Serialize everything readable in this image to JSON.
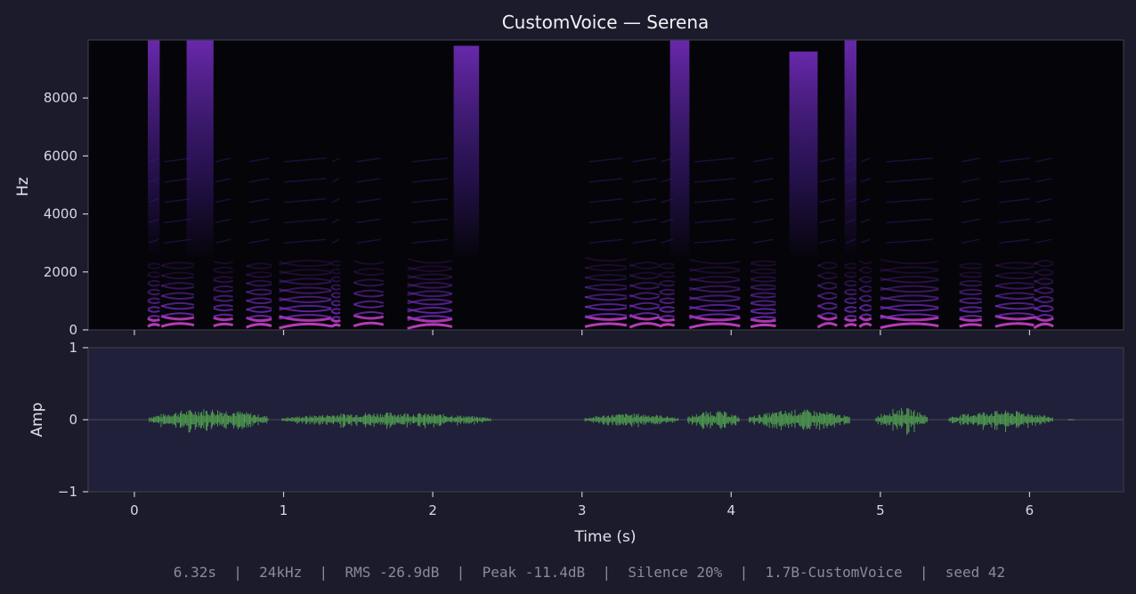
{
  "chart_data": [
    {
      "type": "heatmap",
      "title": "CustomVoice — Serena",
      "ylabel": "Hz",
      "ylim": [
        0,
        10000
      ],
      "yticks": [
        0,
        2000,
        4000,
        6000,
        8000
      ],
      "ytick_labels": [
        "0",
        "2000",
        "4000",
        "6000",
        "8000"
      ],
      "xlim": [
        -0.31,
        6.63
      ],
      "colormap": [
        "#050408",
        "#3a1a7a",
        "#7a2fc8",
        "#c640c8"
      ],
      "voiced_segments": [
        {
          "start": 0.09,
          "end": 0.17,
          "f0": 120,
          "hf_top": 10000
        },
        {
          "start": 0.18,
          "end": 0.4,
          "f0": 140,
          "hf_top": 0
        },
        {
          "start": 0.35,
          "end": 0.53,
          "f0": 0,
          "hf_top": 10000
        },
        {
          "start": 0.53,
          "end": 0.66,
          "f0": 130,
          "hf_top": 0
        },
        {
          "start": 0.75,
          "end": 0.92,
          "f0": 120,
          "hf_top": 0
        },
        {
          "start": 0.97,
          "end": 1.32,
          "f0": 125,
          "hf_top": 0
        },
        {
          "start": 1.32,
          "end": 1.38,
          "f0": 110,
          "hf_top": 0
        },
        {
          "start": 1.47,
          "end": 1.67,
          "f0": 150,
          "hf_top": 0
        },
        {
          "start": 1.83,
          "end": 2.13,
          "f0": 115,
          "hf_top": 0
        },
        {
          "start": 2.14,
          "end": 2.31,
          "f0": 0,
          "hf_top": 9800
        },
        {
          "start": 3.02,
          "end": 3.3,
          "f0": 135,
          "hf_top": 0
        },
        {
          "start": 3.32,
          "end": 3.52,
          "f0": 140,
          "hf_top": 0
        },
        {
          "start": 3.52,
          "end": 3.62,
          "f0": 120,
          "hf_top": 0
        },
        {
          "start": 3.59,
          "end": 3.72,
          "f0": 0,
          "hf_top": 10000
        },
        {
          "start": 3.72,
          "end": 4.06,
          "f0": 130,
          "hf_top": 0
        },
        {
          "start": 4.13,
          "end": 4.3,
          "f0": 110,
          "hf_top": 0
        },
        {
          "start": 4.39,
          "end": 4.58,
          "f0": 0,
          "hf_top": 9600
        },
        {
          "start": 4.58,
          "end": 4.71,
          "f0": 140,
          "hf_top": 0
        },
        {
          "start": 4.76,
          "end": 4.84,
          "f0": 120,
          "hf_top": 10000
        },
        {
          "start": 4.86,
          "end": 4.94,
          "f0": 130,
          "hf_top": 0
        },
        {
          "start": 5.0,
          "end": 5.39,
          "f0": 130,
          "hf_top": 0
        },
        {
          "start": 5.53,
          "end": 5.68,
          "f0": 120,
          "hf_top": 0
        },
        {
          "start": 5.77,
          "end": 6.03,
          "f0": 140,
          "hf_top": 0
        },
        {
          "start": 6.03,
          "end": 6.16,
          "f0": 125,
          "hf_top": 0
        }
      ]
    },
    {
      "type": "line",
      "ylabel": "Amp",
      "xlabel": "Time (s)",
      "xlim": [
        -0.31,
        6.63
      ],
      "ylim": [
        -1,
        1
      ],
      "xticks": [
        0,
        1,
        2,
        3,
        4,
        5,
        6
      ],
      "xtick_labels": [
        "0",
        "1",
        "2",
        "3",
        "4",
        "5",
        "6"
      ],
      "yticks": [
        -1,
        0,
        1
      ],
      "ytick_labels": [
        "−1",
        "0",
        "1"
      ],
      "line_color": "#4f9a4f",
      "segments": [
        {
          "start": 0.1,
          "end": 0.9,
          "amp": 0.12
        },
        {
          "start": 0.99,
          "end": 2.39,
          "amp": 0.08
        },
        {
          "start": 3.02,
          "end": 3.65,
          "amp": 0.07
        },
        {
          "start": 3.71,
          "end": 4.06,
          "amp": 0.1
        },
        {
          "start": 4.12,
          "end": 4.8,
          "amp": 0.11
        },
        {
          "start": 4.97,
          "end": 5.32,
          "amp": 0.13
        },
        {
          "start": 5.46,
          "end": 6.16,
          "amp": 0.1
        },
        {
          "start": 6.26,
          "end": 6.3,
          "amp": 0.015
        }
      ]
    }
  ],
  "footer": {
    "text": "6.32s  |  24kHz  |  RMS -26.9dB  |  Peak -11.4dB  |  Silence 20%  |  1.7B-CustomVoice  |  seed 42"
  }
}
